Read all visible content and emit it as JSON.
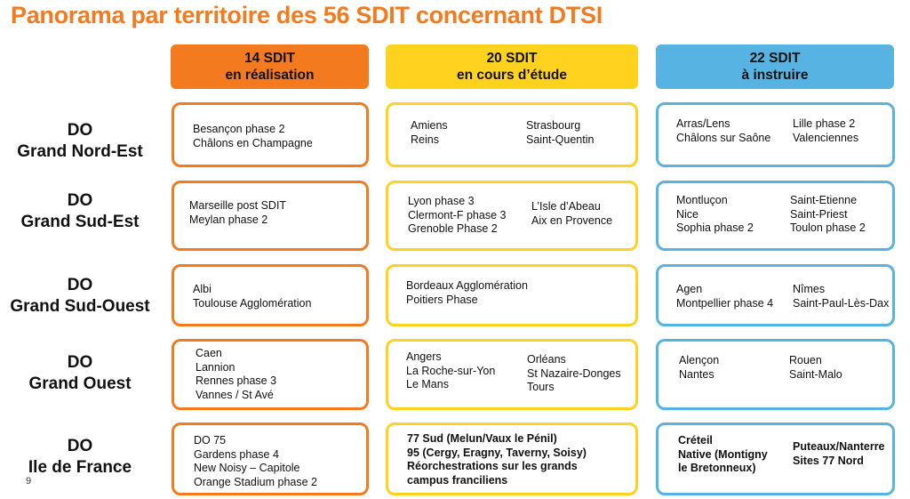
{
  "title": "Panorama par territoire des 56 SDIT concernant DTSI",
  "headers": [
    {
      "count": "14 SDIT",
      "status": "en réalisation"
    },
    {
      "count": "20 SDIT",
      "status": "en cours d’étude"
    },
    {
      "count": "22 SDIT",
      "status": "à instruire"
    }
  ],
  "colors": {
    "orange": "#f37a1f",
    "yellow": "#ffd21f",
    "blue": "#56b3e2"
  },
  "rows": [
    {
      "label": [
        "DO",
        "Grand Nord-Est"
      ],
      "realisation": [
        "Besançon phase 2",
        "Châlons en Champagne"
      ],
      "etude": {
        "left": [
          "Amiens",
          "Reins"
        ],
        "right": [
          "Strasbourg",
          "Saint-Quentin"
        ]
      },
      "instruire": {
        "left": [
          "Arras/Lens",
          "Châlons sur Saône"
        ],
        "right": [
          "Lille phase 2",
          "Valenciennes"
        ]
      }
    },
    {
      "label": [
        "DO",
        "Grand Sud-Est"
      ],
      "realisation": [
        "Marseille  post SDIT",
        "Meylan phase 2"
      ],
      "etude": {
        "left": [
          "Lyon phase 3",
          "Clermont-F phase 3",
          "Grenoble Phase 2"
        ],
        "right": [
          "L’Isle d’Abeau",
          "Aix en Provence"
        ]
      },
      "instruire": {
        "left": [
          "Montluçon",
          "Nice",
          "Sophia phase 2"
        ],
        "right": [
          "Saint-Etienne",
          "Saint-Priest",
          "Toulon phase 2"
        ]
      }
    },
    {
      "label": [
        "DO",
        "Grand Sud-Ouest"
      ],
      "realisation": [
        "Albi",
        "Toulouse Agglomération"
      ],
      "etude": {
        "left": [
          "Bordeaux Agglomération",
          "Poitiers Phase"
        ],
        "right": []
      },
      "instruire": {
        "left": [
          "Agen",
          "Montpellier phase 4"
        ],
        "right": [
          "Nîmes",
          "Saint-Paul-Lès-Dax"
        ]
      }
    },
    {
      "label": [
        "DO",
        "Grand Ouest"
      ],
      "realisation": [
        "Caen",
        "Lannion",
        "Rennes phase 3",
        "Vannes / St Avé"
      ],
      "etude": {
        "left": [
          "Angers",
          "La Roche-sur-Yon",
          "Le Mans"
        ],
        "right": [
          "Orléans",
          "St Nazaire-Donges",
          "Tours"
        ]
      },
      "instruire": {
        "left": [
          "Alençon",
          "Nantes"
        ],
        "right": [
          "Rouen",
          "Saint-Malo"
        ]
      }
    },
    {
      "label": [
        "DO",
        "Ile de France"
      ],
      "realisation": [
        "DO 75",
        "Gardens phase 4",
        "New Noisy – Capitole",
        "Orange Stadium phase 2"
      ],
      "etude": {
        "left": [
          "77 Sud (Melun/Vaux le Pénil)",
          "95 (Cergy, Eragny, Taverny, Soisy)",
          "Réorchestrations sur les grands",
          "campus franciliens"
        ],
        "right": []
      },
      "instruire": {
        "left": [
          "Créteil",
          "Native (Montigny",
          "le Bretonneux)"
        ],
        "right": [
          "Puteaux/Nanterre",
          "Sites 77 Nord"
        ]
      }
    }
  ],
  "page_number": "9"
}
